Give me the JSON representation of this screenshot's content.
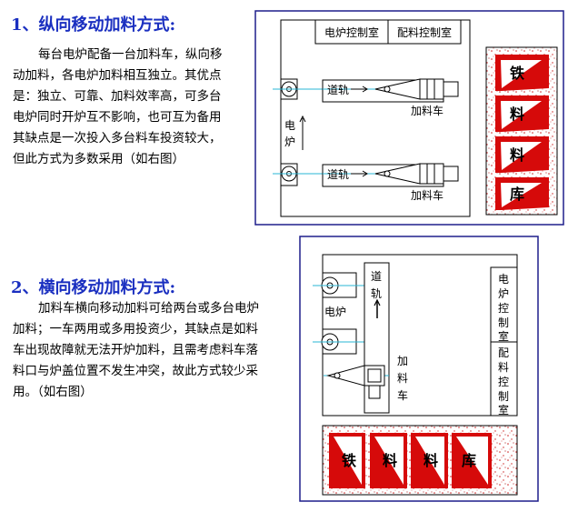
{
  "section1": {
    "heading": "1、纵向移动加料方式:",
    "lines": [
      "每台电炉配备一台加料车，纵向移",
      "动加料，各电炉加料相互独立。其优点",
      "是：独立、可靠、加料效率高，可多台",
      "电炉同时开炉互不影响，也可互为备用",
      "其缺点是一次投入多台料车投资较大，",
      "但此方式为多数采用（如右图）"
    ],
    "diagram": {
      "control_rooms": [
        "电炉控制室",
        "配料控制室"
      ],
      "track_label": "道轨",
      "cart_label": "加料车",
      "furnace_label": "电炉",
      "store_chars": [
        "铁",
        "料",
        "料",
        "库"
      ]
    }
  },
  "section2": {
    "heading": "2、横向移动加料方式:",
    "lines": [
      "加料车横向移动加料可给两台或多台电炉",
      "加料；一车两用或多用投资少，其缺点是如料",
      "车出现故障就无法开炉加料，且需考虑料车落",
      "料口与炉盖位置不发生冲突，故此方式较少采",
      "用。（如右图）"
    ],
    "diagram": {
      "track_label_chars": [
        "道",
        "轨"
      ],
      "furnace_label": "电炉",
      "cart_label_chars": [
        "加",
        "料",
        "车"
      ],
      "control_room_1_chars": [
        "电",
        "炉",
        "控",
        "制",
        "室"
      ],
      "control_room_2_chars": [
        "配",
        "料",
        "控",
        "制",
        "室"
      ],
      "store_chars": [
        "铁",
        "料",
        "料",
        "库"
      ]
    }
  },
  "colors": {
    "heading": "#1a2fc0",
    "frame": "#1e1e8c",
    "cyan_line": "#2ab7d6",
    "red_fill": "#d60a0a",
    "speckle": "#cc2020"
  }
}
